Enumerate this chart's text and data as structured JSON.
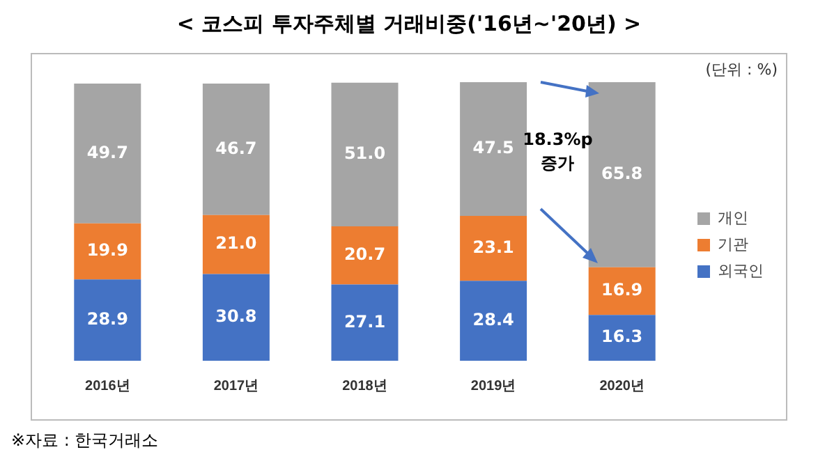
{
  "chart_data": {
    "type": "bar",
    "stacked": true,
    "title": "< 코스피 투자주체별 거래비중('16년~'20년) >",
    "categories": [
      "2016년",
      "2017년",
      "2018년",
      "2019년",
      "2020년"
    ],
    "series": [
      {
        "name": "외국인",
        "color": "#4472c4",
        "values": [
          28.9,
          30.8,
          27.1,
          28.4,
          16.3
        ],
        "value_labels": [
          "28.9",
          "30.8",
          "27.1",
          "28.4",
          "16.3"
        ]
      },
      {
        "name": "기관",
        "color": "#ed7d31",
        "values": [
          19.9,
          21.0,
          20.7,
          23.1,
          16.9
        ],
        "value_labels": [
          "19.9",
          "21.0",
          "20.7",
          "23.1",
          "16.9"
        ]
      },
      {
        "name": "개인",
        "color": "#a5a5a5",
        "values": [
          49.7,
          46.7,
          51.0,
          47.5,
          65.8
        ],
        "value_labels": [
          "49.7",
          "46.7",
          "51.0",
          "47.5",
          "65.8"
        ]
      }
    ],
    "legend": "right",
    "grid": false,
    "tick_labels": "x",
    "annotations": [
      "(단위 : %)",
      "18.3%p 증가",
      "※자료 : 한국거래소"
    ]
  }
}
